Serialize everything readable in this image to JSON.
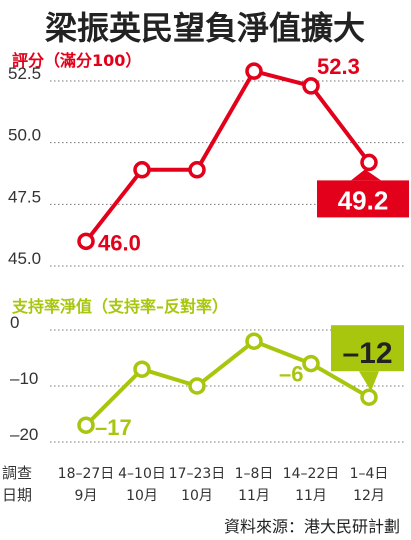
{
  "title": "梁振英民望負淨值擴大",
  "source": "資料來源：港大民研計劃",
  "x_axis_caption": [
    "調查",
    "日期"
  ],
  "colors": {
    "rating": "#e2001a",
    "net": "#a8c60d",
    "text": "#333333"
  },
  "chart_data": [
    {
      "type": "line",
      "title": "評分（滿分100）",
      "categories": [
        "18–27日 9月",
        "4–10日 10月",
        "17–23日 10月",
        "1–8日 11月",
        "14–22日 11月",
        "1–4日 12月"
      ],
      "values": [
        46.0,
        48.9,
        48.9,
        52.9,
        52.3,
        49.2
      ],
      "ylim": [
        45.0,
        52.5
      ],
      "yticks": [
        "52.5",
        "50.0",
        "47.5",
        "45.0"
      ],
      "data_labels": [
        {
          "index": 0,
          "text": "46.0"
        },
        {
          "index": 4,
          "text": "52.3"
        },
        {
          "index": 5,
          "text": "49.2"
        }
      ]
    },
    {
      "type": "line",
      "title": "支持率淨值（支持率–反對率）",
      "categories": [
        "18–27日 9月",
        "4–10日 10月",
        "17–23日 10月",
        "1–8日 11月",
        "14–22日 11月",
        "1–4日 12月"
      ],
      "values": [
        -17,
        -7,
        -10,
        -2,
        -6,
        -12
      ],
      "ylim": [
        -20,
        0
      ],
      "yticks": [
        "0",
        "–10",
        "–20"
      ],
      "data_labels": [
        {
          "index": 0,
          "text": "–17"
        },
        {
          "index": 4,
          "text": "–6"
        },
        {
          "index": 5,
          "text": "–12"
        }
      ]
    }
  ],
  "x_ticks": [
    {
      "days": "18–27日",
      "month": "9月"
    },
    {
      "days": "4–10日",
      "month": "10月"
    },
    {
      "days": "17–23日",
      "month": "10月"
    },
    {
      "days": "1–8日",
      "month": "11月"
    },
    {
      "days": "14–22日",
      "month": "11月"
    },
    {
      "days": "1–4日",
      "month": "12月"
    }
  ]
}
